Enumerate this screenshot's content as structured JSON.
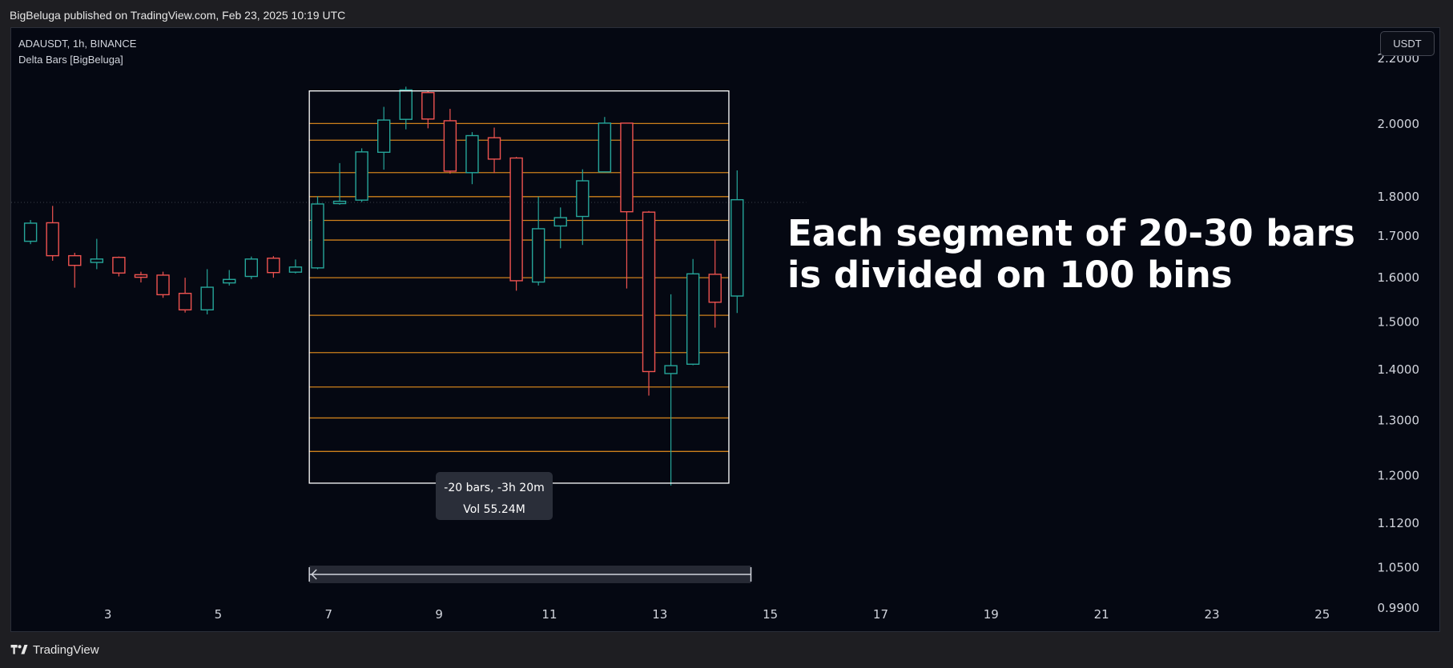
{
  "header": {
    "publisher_line": "BigBeluga published on TradingView.com, Feb 23, 2025 10:19 UTC"
  },
  "chart_header": {
    "symbol_line": "ADAUSDT, 1h, BINANCE",
    "indicator_name": "Delta Bars [BigBeluga]",
    "currency": "USDT"
  },
  "annotation": {
    "line1": "Each segment of 20-30 bars",
    "line2": "is divided on 100 bins"
  },
  "measure_tool": {
    "bars_line": "-20 bars, -3h 20m",
    "vol_line": "Vol 55.24M"
  },
  "footer": {
    "brand": "TradingView"
  },
  "colors": {
    "up": "#26a69a",
    "down": "#ef5350",
    "bin_line": "#f0961e",
    "box": "#ffffff",
    "background": "#050812"
  },
  "chart_data": {
    "type": "candlestick",
    "title": "ADAUSDT, 1h, BINANCE",
    "y_scale": "log",
    "ylim": [
      0.955,
      2.3
    ],
    "y_ticks": [
      "2.2000",
      "2.0000",
      "1.8000",
      "1.7000",
      "1.6000",
      "1.5000",
      "1.4000",
      "1.3000",
      "1.2000",
      "1.1200",
      "1.0500",
      "0.9900"
    ],
    "y_tick_values": [
      2.2,
      2.0,
      1.8,
      1.7,
      1.6,
      1.5,
      1.4,
      1.3,
      1.2,
      1.12,
      1.05,
      0.99
    ],
    "x_ticks": [
      "3",
      "5",
      "7",
      "9",
      "11",
      "13",
      "15",
      "17",
      "19",
      "21",
      "23",
      "25"
    ],
    "x_tick_values": [
      3,
      5,
      7,
      9,
      11,
      13,
      15,
      17,
      19,
      21,
      23,
      25
    ],
    "xlim": [
      1.25,
      27.15
    ],
    "candles": [
      {
        "x": 1.6,
        "open": 1.687,
        "high": 1.74,
        "low": 1.68,
        "close": 1.732
      },
      {
        "x": 2.0,
        "open": 1.733,
        "high": 1.776,
        "low": 1.64,
        "close": 1.652
      },
      {
        "x": 2.4,
        "open": 1.652,
        "high": 1.659,
        "low": 1.577,
        "close": 1.629
      },
      {
        "x": 2.8,
        "open": 1.636,
        "high": 1.693,
        "low": 1.62,
        "close": 1.644
      },
      {
        "x": 3.2,
        "open": 1.648,
        "high": 1.65,
        "low": 1.603,
        "close": 1.611
      },
      {
        "x": 3.6,
        "open": 1.607,
        "high": 1.614,
        "low": 1.589,
        "close": 1.601
      },
      {
        "x": 4.0,
        "open": 1.606,
        "high": 1.614,
        "low": 1.554,
        "close": 1.561
      },
      {
        "x": 4.4,
        "open": 1.564,
        "high": 1.6,
        "low": 1.521,
        "close": 1.527
      },
      {
        "x": 4.8,
        "open": 1.527,
        "high": 1.62,
        "low": 1.517,
        "close": 1.578
      },
      {
        "x": 5.2,
        "open": 1.588,
        "high": 1.618,
        "low": 1.582,
        "close": 1.596
      },
      {
        "x": 5.6,
        "open": 1.603,
        "high": 1.65,
        "low": 1.597,
        "close": 1.644
      },
      {
        "x": 6.0,
        "open": 1.646,
        "high": 1.651,
        "low": 1.6,
        "close": 1.612
      },
      {
        "x": 6.4,
        "open": 1.613,
        "high": 1.643,
        "low": 1.61,
        "close": 1.625
      },
      {
        "x": 6.8,
        "open": 1.623,
        "high": 1.801,
        "low": 1.62,
        "close": 1.781
      },
      {
        "x": 7.2,
        "open": 1.782,
        "high": 1.89,
        "low": 1.779,
        "close": 1.788
      },
      {
        "x": 7.6,
        "open": 1.791,
        "high": 1.931,
        "low": 1.786,
        "close": 1.921
      },
      {
        "x": 8.0,
        "open": 1.92,
        "high": 2.051,
        "low": 1.872,
        "close": 2.012
      },
      {
        "x": 8.4,
        "open": 2.014,
        "high": 2.112,
        "low": 1.985,
        "close": 2.102
      },
      {
        "x": 8.8,
        "open": 2.094,
        "high": 2.1,
        "low": 1.988,
        "close": 2.015
      },
      {
        "x": 9.2,
        "open": 2.01,
        "high": 2.045,
        "low": 1.861,
        "close": 1.868
      },
      {
        "x": 9.6,
        "open": 1.864,
        "high": 1.977,
        "low": 1.833,
        "close": 1.967
      },
      {
        "x": 10.0,
        "open": 1.961,
        "high": 1.99,
        "low": 1.863,
        "close": 1.901
      },
      {
        "x": 10.4,
        "open": 1.904,
        "high": 1.907,
        "low": 1.57,
        "close": 1.593
      },
      {
        "x": 10.8,
        "open": 1.59,
        "high": 1.8,
        "low": 1.582,
        "close": 1.718
      },
      {
        "x": 11.2,
        "open": 1.725,
        "high": 1.772,
        "low": 1.67,
        "close": 1.746
      },
      {
        "x": 11.6,
        "open": 1.749,
        "high": 1.873,
        "low": 1.678,
        "close": 1.842
      },
      {
        "x": 12.0,
        "open": 1.866,
        "high": 2.021,
        "low": 1.866,
        "close": 2.003
      },
      {
        "x": 12.4,
        "open": 2.003,
        "high": 2.003,
        "low": 1.575,
        "close": 1.761
      },
      {
        "x": 12.8,
        "open": 1.76,
        "high": 1.763,
        "low": 1.348,
        "close": 1.396
      },
      {
        "x": 13.2,
        "open": 1.392,
        "high": 1.562,
        "low": 1.183,
        "close": 1.408
      },
      {
        "x": 13.6,
        "open": 1.411,
        "high": 1.644,
        "low": 1.409,
        "close": 1.609
      },
      {
        "x": 14.0,
        "open": 1.608,
        "high": 1.69,
        "low": 1.488,
        "close": 1.544
      },
      {
        "x": 14.4,
        "open": 1.558,
        "high": 1.87,
        "low": 1.52,
        "close": 1.792
      }
    ],
    "bin_levels": [
      2.002,
      1.954,
      1.864,
      1.8,
      1.739,
      1.69,
      1.6,
      1.515,
      1.435,
      1.365,
      1.305,
      1.243
    ],
    "segment_box": {
      "x_start": 6.65,
      "x_end": 14.25,
      "price_high": 2.099,
      "price_low": 1.187
    },
    "current_price_line": 1.785,
    "measure_range": {
      "x_start": 6.65,
      "x_end": 14.65
    }
  }
}
